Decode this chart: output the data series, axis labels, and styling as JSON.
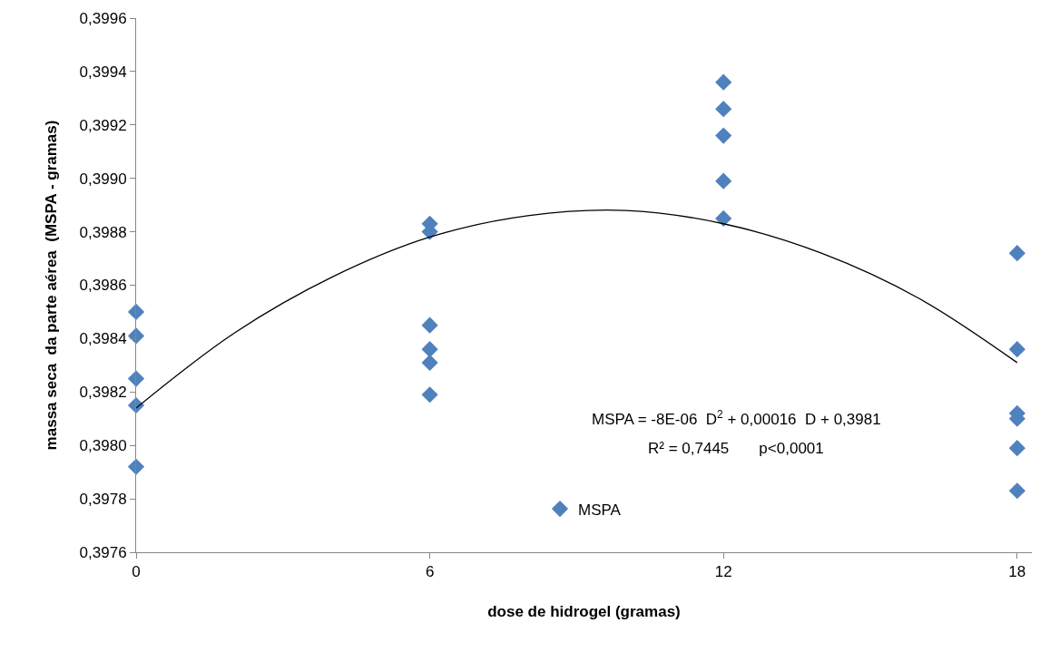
{
  "chart_data": {
    "type": "scatter",
    "xlabel": "dose de hidrogel (gramas)",
    "ylabel": "massa seca  da parte aérea  (MSPA - gramas)",
    "series": [
      {
        "name": "MSPA",
        "color": "#4f81bd",
        "marker": "diamond",
        "x": [
          0,
          0,
          0,
          0,
          0,
          6,
          6,
          6,
          6,
          6,
          6,
          12,
          12,
          12,
          12,
          12,
          18,
          18,
          18,
          18,
          18,
          18
        ],
        "values": [
          0.3985,
          0.39841,
          0.39825,
          0.39815,
          0.39792,
          0.39883,
          0.3988,
          0.39845,
          0.39836,
          0.39831,
          0.39819,
          0.39936,
          0.39926,
          0.39916,
          0.39899,
          0.39885,
          0.39872,
          0.39836,
          0.39812,
          0.3981,
          0.39799,
          0.39783
        ]
      },
      {
        "type": "line",
        "color": "#000000",
        "marker": "none",
        "line_style": "solid",
        "x": [
          0,
          2,
          4,
          6,
          8,
          10,
          12,
          14,
          16,
          18
        ],
        "values": [
          0.39814,
          0.39842,
          0.39863,
          0.39878,
          0.39886,
          0.39888,
          0.39883,
          0.39872,
          0.39855,
          0.39831
        ]
      }
    ],
    "xlim": [
      0,
      18.3
    ],
    "xticks": [
      0,
      6,
      12,
      18
    ],
    "ylim": [
      0.3976,
      0.3996
    ],
    "yticks": [
      {
        "value": 0.3976,
        "label": "0,3976"
      },
      {
        "value": 0.3978,
        "label": "0,3978"
      },
      {
        "value": 0.398,
        "label": "0,3980"
      },
      {
        "value": 0.3982,
        "label": "0,3982"
      },
      {
        "value": 0.3984,
        "label": "0,3984"
      },
      {
        "value": 0.3986,
        "label": "0,3986"
      },
      {
        "value": 0.3988,
        "label": "0,3988"
      },
      {
        "value": 0.399,
        "label": "0,3990"
      },
      {
        "value": 0.3992,
        "label": "0,3992"
      },
      {
        "value": 0.3994,
        "label": "0,3994"
      },
      {
        "value": 0.3996,
        "label": "0,3996"
      }
    ],
    "annotations": [
      "MSPA = -8E-06  D$^{2}$ + 0,00016  D + 0,3981",
      "R² = 0,7445       p<0,0001"
    ],
    "legend": "bottom"
  }
}
